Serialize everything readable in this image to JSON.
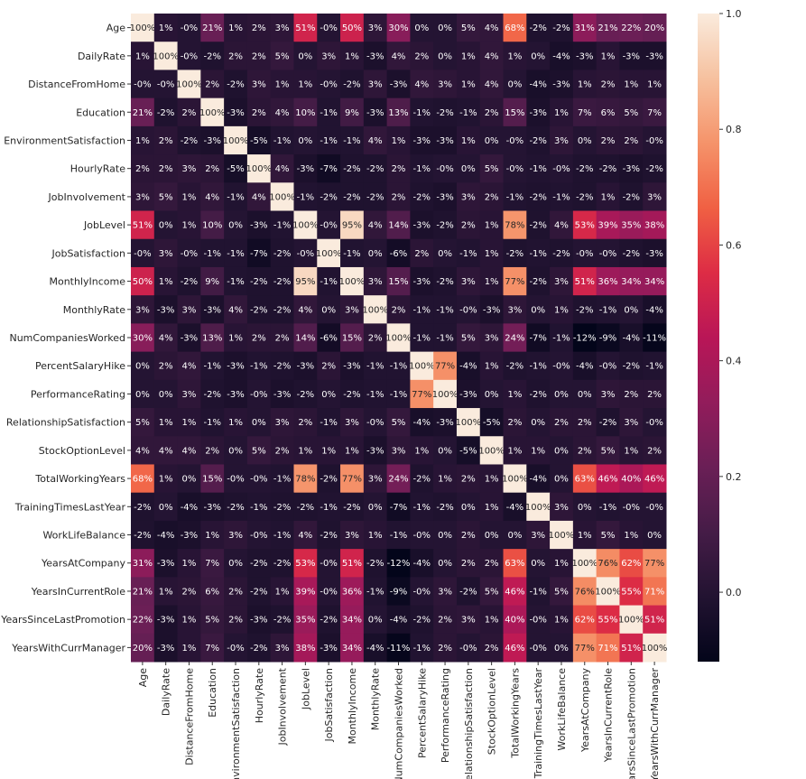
{
  "chart_data": {
    "type": "heatmap",
    "title": "",
    "value_format": "percent",
    "colormap": "rocket",
    "colormap_stops": [
      "#03051a",
      "#221331",
      "#451c47",
      "#6a1f56",
      "#921c5b",
      "#b91657",
      "#dd2c45",
      "#f06043",
      "#f5936a",
      "#f6c19f",
      "#faebdd"
    ],
    "vmin": -0.12,
    "vmax": 1.0,
    "colorbar_ticks": [
      "0.0",
      "0.2",
      "0.4",
      "0.6",
      "0.8",
      "1.0"
    ],
    "labels": [
      "Age",
      "DailyRate",
      "DistanceFromHome",
      "Education",
      "EnvironmentSatisfaction",
      "HourlyRate",
      "JobInvolvement",
      "JobLevel",
      "JobSatisfaction",
      "MonthlyIncome",
      "MonthlyRate",
      "NumCompaniesWorked",
      "PercentSalaryHike",
      "PerformanceRating",
      "RelationshipSatisfaction",
      "StockOptionLevel",
      "TotalWorkingYears",
      "TrainingTimesLastYear",
      "WorkLifeBalance",
      "YearsAtCompany",
      "YearsInCurrentRole",
      "YearsSinceLastPromotion",
      "YearsWithCurrManager"
    ],
    "values_percent": [
      [
        100,
        1,
        0,
        21,
        1,
        2,
        3,
        51,
        0,
        50,
        3,
        30,
        0,
        0,
        5,
        4,
        68,
        -2,
        -2,
        31,
        21,
        22,
        20
      ],
      [
        1,
        100,
        0,
        -2,
        2,
        2,
        5,
        0,
        3,
        1,
        -3,
        4,
        2,
        0,
        1,
        4,
        1,
        0,
        -4,
        -3,
        1,
        -3,
        -3
      ],
      [
        0,
        0,
        100,
        2,
        -2,
        3,
        1,
        1,
        0,
        -2,
        3,
        -3,
        4,
        3,
        1,
        4,
        0,
        -4,
        -3,
        1,
        2,
        1,
        1
      ],
      [
        21,
        -2,
        2,
        100,
        -3,
        2,
        4,
        10,
        -1,
        9,
        -3,
        13,
        -1,
        -2,
        -1,
        2,
        15,
        -3,
        1,
        7,
        6,
        5,
        7
      ],
      [
        1,
        2,
        -2,
        -3,
        100,
        -5,
        -1,
        0,
        -1,
        -1,
        4,
        1,
        -3,
        -3,
        1,
        0,
        0,
        -2,
        3,
        0,
        2,
        2,
        0
      ],
      [
        2,
        2,
        3,
        2,
        -5,
        100,
        4,
        -3,
        -7,
        -2,
        -2,
        2,
        -1,
        0,
        0,
        5,
        0,
        -1,
        0,
        -2,
        -2,
        -3,
        -2
      ],
      [
        3,
        5,
        1,
        4,
        -1,
        4,
        100,
        -1,
        -2,
        -2,
        -2,
        2,
        -2,
        -3,
        3,
        2,
        -1,
        -2,
        -1,
        -2,
        1,
        -2,
        3
      ],
      [
        51,
        0,
        1,
        10,
        0,
        -3,
        -1,
        100,
        0,
        95,
        4,
        14,
        -3,
        -2,
        2,
        1,
        78,
        -2,
        4,
        53,
        39,
        35,
        38
      ],
      [
        0,
        3,
        0,
        -1,
        -1,
        -7,
        -2,
        0,
        100,
        -1,
        0,
        -6,
        2,
        0,
        -1,
        1,
        -2,
        -1,
        -2,
        0,
        0,
        -2,
        -3
      ],
      [
        50,
        1,
        -2,
        9,
        -1,
        -2,
        -2,
        95,
        -1,
        100,
        3,
        15,
        -3,
        -2,
        3,
        1,
        77,
        -2,
        3,
        51,
        36,
        34,
        34
      ],
      [
        3,
        -3,
        3,
        -3,
        4,
        -2,
        -2,
        4,
        0,
        3,
        100,
        2,
        -1,
        -1,
        0,
        -3,
        3,
        0,
        1,
        -2,
        -1,
        0,
        -4
      ],
      [
        30,
        4,
        -3,
        13,
        1,
        2,
        2,
        14,
        -6,
        15,
        2,
        100,
        -1,
        -1,
        5,
        3,
        24,
        -7,
        -1,
        -12,
        -9,
        -4,
        -11
      ],
      [
        0,
        2,
        4,
        -1,
        -3,
        -1,
        -2,
        -3,
        2,
        -3,
        -1,
        -1,
        100,
        77,
        -4,
        1,
        -2,
        -1,
        0,
        -4,
        0,
        -2,
        -1
      ],
      [
        0,
        0,
        3,
        -2,
        -3,
        0,
        -3,
        -2,
        0,
        -2,
        -1,
        -1,
        77,
        100,
        -3,
        0,
        1,
        -2,
        0,
        0,
        3,
        2,
        2
      ],
      [
        5,
        1,
        1,
        -1,
        1,
        0,
        3,
        2,
        -1,
        3,
        0,
        5,
        -4,
        -3,
        100,
        -5,
        2,
        0,
        2,
        2,
        -2,
        3,
        0
      ],
      [
        4,
        4,
        4,
        2,
        0,
        5,
        2,
        1,
        1,
        1,
        -3,
        3,
        1,
        0,
        -5,
        100,
        1,
        1,
        0,
        2,
        5,
        1,
        2
      ],
      [
        68,
        1,
        0,
        15,
        0,
        0,
        -1,
        78,
        -2,
        77,
        3,
        24,
        -2,
        1,
        2,
        1,
        100,
        -4,
        0,
        63,
        46,
        40,
        46
      ],
      [
        -2,
        0,
        -4,
        -3,
        -2,
        -1,
        -2,
        -2,
        -1,
        -2,
        0,
        -7,
        -1,
        -2,
        0,
        1,
        -4,
        100,
        3,
        0,
        -1,
        0,
        0
      ],
      [
        -2,
        -4,
        -3,
        1,
        3,
        0,
        -1,
        4,
        -2,
        3,
        1,
        -1,
        0,
        0,
        2,
        0,
        0,
        3,
        100,
        1,
        5,
        1,
        0
      ],
      [
        31,
        -3,
        1,
        7,
        0,
        -2,
        -2,
        53,
        0,
        51,
        -2,
        -12,
        -4,
        0,
        2,
        2,
        63,
        0,
        1,
        100,
        76,
        62,
        77
      ],
      [
        21,
        1,
        2,
        6,
        2,
        -2,
        1,
        39,
        0,
        36,
        -1,
        -9,
        0,
        3,
        -2,
        5,
        46,
        -1,
        5,
        76,
        100,
        55,
        71
      ],
      [
        22,
        -3,
        1,
        5,
        2,
        -3,
        -2,
        35,
        -2,
        34,
        0,
        -4,
        -2,
        2,
        3,
        1,
        40,
        0,
        1,
        62,
        55,
        100,
        51
      ],
      [
        20,
        -3,
        1,
        7,
        0,
        -2,
        3,
        38,
        -3,
        34,
        -4,
        -11,
        -1,
        2,
        0,
        2,
        46,
        0,
        0,
        77,
        71,
        51,
        100
      ]
    ]
  }
}
